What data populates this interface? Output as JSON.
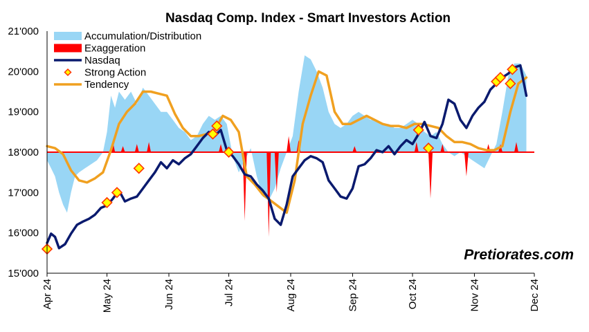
{
  "chart_data": {
    "type": "line",
    "title": "Nasdaq Comp. Index - Smart Investors Action",
    "xlabel": "",
    "ylabel": "",
    "ylim": [
      15000,
      21000
    ],
    "xlim": [
      "2024-04-01",
      "2024-12-01"
    ],
    "grid": false,
    "legend_position": "top-left",
    "watermark": "Pretiorates.com",
    "y_tick_labels": [
      "15'000",
      "16'000",
      "17'000",
      "18'000",
      "19'000",
      "20'000",
      "21'000"
    ],
    "y_ticks": [
      15000,
      16000,
      17000,
      18000,
      19000,
      20000,
      21000
    ],
    "x_tick_labels": [
      "Apr 24",
      "May 24",
      "Jun 24",
      "Jul 24",
      "Aug 24",
      "Sep 24",
      "Oct 24",
      "Nov 24",
      "Dec 24"
    ],
    "x_ticks": [
      "2024-04-01",
      "2024-05-01",
      "2024-06-01",
      "2024-07-01",
      "2024-08-01",
      "2024-09-01",
      "2024-10-01",
      "2024-11-01",
      "2024-12-01"
    ],
    "baseline": 18000,
    "legend": [
      {
        "name": "Accumulation/Distribution",
        "kind": "area",
        "color": "#99d6f5"
      },
      {
        "name": "Exaggeration",
        "kind": "area",
        "color": "#ff0000"
      },
      {
        "name": "Nasdaq",
        "kind": "line",
        "color": "#0a1a6e"
      },
      {
        "name": "Strong Action",
        "kind": "marker",
        "color": "#ffff00"
      },
      {
        "name": "Tendency",
        "kind": "line",
        "color": "#f0a020"
      }
    ],
    "series": [
      {
        "name": "Nasdaq",
        "color": "#0a1a6e",
        "points": [
          [
            "2024-04-01",
            15750
          ],
          [
            "2024-04-03",
            15980
          ],
          [
            "2024-04-05",
            15900
          ],
          [
            "2024-04-07",
            15620
          ],
          [
            "2024-04-10",
            15720
          ],
          [
            "2024-04-13",
            15980
          ],
          [
            "2024-04-16",
            16200
          ],
          [
            "2024-04-19",
            16280
          ],
          [
            "2024-04-22",
            16350
          ],
          [
            "2024-04-25",
            16450
          ],
          [
            "2024-04-28",
            16620
          ],
          [
            "2024-05-01",
            16680
          ],
          [
            "2024-05-04",
            16850
          ],
          [
            "2024-05-07",
            17050
          ],
          [
            "2024-05-10",
            16780
          ],
          [
            "2024-05-13",
            16850
          ],
          [
            "2024-05-16",
            16900
          ],
          [
            "2024-05-19",
            17100
          ],
          [
            "2024-05-22",
            17300
          ],
          [
            "2024-05-25",
            17500
          ],
          [
            "2024-05-28",
            17750
          ],
          [
            "2024-05-31",
            17600
          ],
          [
            "2024-06-03",
            17800
          ],
          [
            "2024-06-06",
            17700
          ],
          [
            "2024-06-09",
            17850
          ],
          [
            "2024-06-12",
            17950
          ],
          [
            "2024-06-15",
            18150
          ],
          [
            "2024-06-18",
            18350
          ],
          [
            "2024-06-21",
            18500
          ],
          [
            "2024-06-24",
            18400
          ],
          [
            "2024-06-27",
            18550
          ],
          [
            "2024-06-30",
            18050
          ],
          [
            "2024-07-03",
            17900
          ],
          [
            "2024-07-06",
            17700
          ],
          [
            "2024-07-09",
            17450
          ],
          [
            "2024-07-12",
            17400
          ],
          [
            "2024-07-15",
            17200
          ],
          [
            "2024-07-18",
            17050
          ],
          [
            "2024-07-21",
            16850
          ],
          [
            "2024-07-24",
            16350
          ],
          [
            "2024-07-27",
            16200
          ],
          [
            "2024-07-30",
            16700
          ],
          [
            "2024-08-02",
            17400
          ],
          [
            "2024-08-05",
            17600
          ],
          [
            "2024-08-08",
            17800
          ],
          [
            "2024-08-11",
            17900
          ],
          [
            "2024-08-14",
            17850
          ],
          [
            "2024-08-17",
            17750
          ],
          [
            "2024-08-20",
            17300
          ],
          [
            "2024-08-23",
            17100
          ],
          [
            "2024-08-26",
            16900
          ],
          [
            "2024-08-29",
            16850
          ],
          [
            "2024-09-01",
            17100
          ],
          [
            "2024-09-04",
            17650
          ],
          [
            "2024-09-07",
            17700
          ],
          [
            "2024-09-10",
            17850
          ],
          [
            "2024-09-13",
            18050
          ],
          [
            "2024-09-16",
            18000
          ],
          [
            "2024-09-19",
            18150
          ],
          [
            "2024-09-22",
            17950
          ],
          [
            "2024-09-25",
            18150
          ],
          [
            "2024-09-28",
            18300
          ],
          [
            "2024-10-01",
            18200
          ],
          [
            "2024-10-04",
            18450
          ],
          [
            "2024-10-07",
            18750
          ],
          [
            "2024-10-10",
            18400
          ],
          [
            "2024-10-13",
            18350
          ],
          [
            "2024-10-16",
            18700
          ],
          [
            "2024-10-19",
            19300
          ],
          [
            "2024-10-22",
            19200
          ],
          [
            "2024-10-25",
            18800
          ],
          [
            "2024-10-28",
            18600
          ],
          [
            "2024-10-31",
            18900
          ],
          [
            "2024-11-03",
            19100
          ],
          [
            "2024-11-06",
            19250
          ],
          [
            "2024-11-09",
            19550
          ],
          [
            "2024-11-12",
            19700
          ],
          [
            "2024-11-15",
            19850
          ],
          [
            "2024-11-18",
            19950
          ],
          [
            "2024-11-21",
            20100
          ],
          [
            "2024-11-24",
            20150
          ],
          [
            "2024-11-27",
            19400
          ]
        ]
      },
      {
        "name": "Tendency",
        "color": "#f0a020",
        "points": [
          [
            "2024-04-01",
            18150
          ],
          [
            "2024-04-05",
            18100
          ],
          [
            "2024-04-09",
            17950
          ],
          [
            "2024-04-13",
            17550
          ],
          [
            "2024-04-17",
            17300
          ],
          [
            "2024-04-21",
            17250
          ],
          [
            "2024-04-25",
            17350
          ],
          [
            "2024-04-29",
            17500
          ],
          [
            "2024-05-03",
            18050
          ],
          [
            "2024-05-07",
            18700
          ],
          [
            "2024-05-11",
            19000
          ],
          [
            "2024-05-15",
            19200
          ],
          [
            "2024-05-19",
            19500
          ],
          [
            "2024-05-23",
            19500
          ],
          [
            "2024-05-27",
            19450
          ],
          [
            "2024-05-31",
            19400
          ],
          [
            "2024-06-04",
            18950
          ],
          [
            "2024-06-08",
            18600
          ],
          [
            "2024-06-12",
            18400
          ],
          [
            "2024-06-16",
            18400
          ],
          [
            "2024-06-20",
            18450
          ],
          [
            "2024-06-24",
            18550
          ],
          [
            "2024-06-28",
            18900
          ],
          [
            "2024-07-02",
            18800
          ],
          [
            "2024-07-06",
            18500
          ],
          [
            "2024-07-10",
            17400
          ],
          [
            "2024-07-14",
            17200
          ],
          [
            "2024-07-18",
            16950
          ],
          [
            "2024-07-22",
            16800
          ],
          [
            "2024-07-26",
            16650
          ],
          [
            "2024-07-30",
            16500
          ],
          [
            "2024-08-03",
            17300
          ],
          [
            "2024-08-07",
            18700
          ],
          [
            "2024-08-11",
            19400
          ],
          [
            "2024-08-15",
            20000
          ],
          [
            "2024-08-19",
            19900
          ],
          [
            "2024-08-23",
            19000
          ],
          [
            "2024-08-27",
            18700
          ],
          [
            "2024-08-31",
            18700
          ],
          [
            "2024-09-04",
            18800
          ],
          [
            "2024-09-08",
            18900
          ],
          [
            "2024-09-12",
            18800
          ],
          [
            "2024-09-16",
            18700
          ],
          [
            "2024-09-20",
            18650
          ],
          [
            "2024-09-24",
            18650
          ],
          [
            "2024-09-28",
            18600
          ],
          [
            "2024-10-02",
            18700
          ],
          [
            "2024-10-06",
            18700
          ],
          [
            "2024-10-10",
            18650
          ],
          [
            "2024-10-14",
            18600
          ],
          [
            "2024-10-18",
            18400
          ],
          [
            "2024-10-22",
            18250
          ],
          [
            "2024-10-26",
            18250
          ],
          [
            "2024-10-30",
            18200
          ],
          [
            "2024-11-03",
            18100
          ],
          [
            "2024-11-07",
            18050
          ],
          [
            "2024-11-11",
            18050
          ],
          [
            "2024-11-15",
            18150
          ],
          [
            "2024-11-19",
            19000
          ],
          [
            "2024-11-23",
            19700
          ],
          [
            "2024-11-27",
            19850
          ]
        ]
      },
      {
        "name": "Accumulation/Distribution",
        "color": "#99d6f5",
        "points": [
          [
            "2024-04-01",
            17800
          ],
          [
            "2024-04-03",
            17600
          ],
          [
            "2024-04-05",
            17400
          ],
          [
            "2024-04-07",
            17000
          ],
          [
            "2024-04-09",
            16700
          ],
          [
            "2024-04-11",
            16500
          ],
          [
            "2024-04-13",
            17000
          ],
          [
            "2024-04-15",
            17400
          ],
          [
            "2024-04-17",
            17500
          ],
          [
            "2024-04-20",
            17600
          ],
          [
            "2024-04-23",
            17700
          ],
          [
            "2024-04-26",
            17800
          ],
          [
            "2024-04-29",
            18000
          ],
          [
            "2024-05-01",
            18500
          ],
          [
            "2024-05-03",
            19400
          ],
          [
            "2024-05-05",
            19100
          ],
          [
            "2024-05-07",
            19500
          ],
          [
            "2024-05-10",
            19300
          ],
          [
            "2024-05-13",
            19500
          ],
          [
            "2024-05-16",
            19200
          ],
          [
            "2024-05-19",
            19600
          ],
          [
            "2024-05-22",
            19400
          ],
          [
            "2024-05-25",
            19200
          ],
          [
            "2024-05-28",
            19000
          ],
          [
            "2024-05-31",
            19000
          ],
          [
            "2024-06-03",
            18800
          ],
          [
            "2024-06-06",
            18600
          ],
          [
            "2024-06-09",
            18500
          ],
          [
            "2024-06-12",
            18300
          ],
          [
            "2024-06-15",
            18400
          ],
          [
            "2024-06-18",
            18700
          ],
          [
            "2024-06-21",
            18900
          ],
          [
            "2024-06-24",
            18800
          ],
          [
            "2024-06-27",
            18900
          ],
          [
            "2024-06-30",
            18700
          ],
          [
            "2024-07-03",
            17900
          ],
          [
            "2024-07-06",
            17500
          ],
          [
            "2024-07-09",
            17800
          ],
          [
            "2024-07-12",
            18100
          ],
          [
            "2024-07-15",
            17400
          ],
          [
            "2024-07-18",
            16900
          ],
          [
            "2024-07-21",
            16800
          ],
          [
            "2024-07-24",
            17100
          ],
          [
            "2024-07-27",
            17600
          ],
          [
            "2024-07-30",
            18000
          ],
          [
            "2024-08-02",
            18400
          ],
          [
            "2024-08-05",
            19500
          ],
          [
            "2024-08-08",
            20400
          ],
          [
            "2024-08-11",
            20300
          ],
          [
            "2024-08-14",
            20000
          ],
          [
            "2024-08-17",
            19600
          ],
          [
            "2024-08-20",
            19000
          ],
          [
            "2024-08-23",
            18700
          ],
          [
            "2024-08-26",
            18600
          ],
          [
            "2024-08-29",
            18700
          ],
          [
            "2024-09-01",
            18900
          ],
          [
            "2024-09-04",
            19000
          ],
          [
            "2024-09-07",
            18900
          ],
          [
            "2024-09-10",
            18800
          ],
          [
            "2024-09-13",
            18800
          ],
          [
            "2024-09-16",
            18700
          ],
          [
            "2024-09-19",
            18700
          ],
          [
            "2024-09-22",
            18600
          ],
          [
            "2024-09-25",
            18600
          ],
          [
            "2024-09-28",
            18700
          ],
          [
            "2024-10-01",
            18800
          ],
          [
            "2024-10-04",
            18700
          ],
          [
            "2024-10-07",
            18500
          ],
          [
            "2024-10-10",
            18400
          ],
          [
            "2024-10-13",
            18500
          ],
          [
            "2024-10-16",
            18200
          ],
          [
            "2024-10-19",
            18000
          ],
          [
            "2024-10-22",
            17900
          ],
          [
            "2024-10-25",
            18000
          ],
          [
            "2024-10-28",
            17900
          ],
          [
            "2024-10-31",
            17800
          ],
          [
            "2024-11-03",
            17700
          ],
          [
            "2024-11-06",
            17600
          ],
          [
            "2024-11-09",
            17900
          ],
          [
            "2024-11-12",
            18200
          ],
          [
            "2024-11-15",
            19000
          ],
          [
            "2024-11-18",
            19900
          ],
          [
            "2024-11-21",
            20200
          ],
          [
            "2024-11-24",
            20200
          ],
          [
            "2024-11-27",
            19900
          ]
        ]
      },
      {
        "name": "Exaggeration",
        "color": "#ff0000",
        "spikes": [
          [
            "2024-05-04",
            18250
          ],
          [
            "2024-05-09",
            18150
          ],
          [
            "2024-05-16",
            18200
          ],
          [
            "2024-05-22",
            18250
          ],
          [
            "2024-06-27",
            18200
          ],
          [
            "2024-07-09",
            16300
          ],
          [
            "2024-07-21",
            15900
          ],
          [
            "2024-07-25",
            17000
          ],
          [
            "2024-07-31",
            18400
          ],
          [
            "2024-08-05",
            18300
          ],
          [
            "2024-09-02",
            18150
          ],
          [
            "2024-10-03",
            18250
          ],
          [
            "2024-10-10",
            16850
          ],
          [
            "2024-10-16",
            18200
          ],
          [
            "2024-10-28",
            17400
          ],
          [
            "2024-11-08",
            18200
          ],
          [
            "2024-11-14",
            18200
          ],
          [
            "2024-11-22",
            18250
          ]
        ]
      },
      {
        "name": "Strong Action",
        "color": "#ffff00",
        "points": [
          [
            "2024-04-01",
            15600
          ],
          [
            "2024-05-01",
            16750
          ],
          [
            "2024-05-06",
            17000
          ],
          [
            "2024-05-17",
            17600
          ],
          [
            "2024-06-23",
            18450
          ],
          [
            "2024-06-25",
            18650
          ],
          [
            "2024-07-01",
            18000
          ],
          [
            "2024-10-04",
            18550
          ],
          [
            "2024-10-09",
            18100
          ],
          [
            "2024-11-12",
            19750
          ],
          [
            "2024-11-14",
            19850
          ],
          [
            "2024-11-19",
            19700
          ],
          [
            "2024-11-20",
            20050
          ]
        ]
      }
    ]
  }
}
